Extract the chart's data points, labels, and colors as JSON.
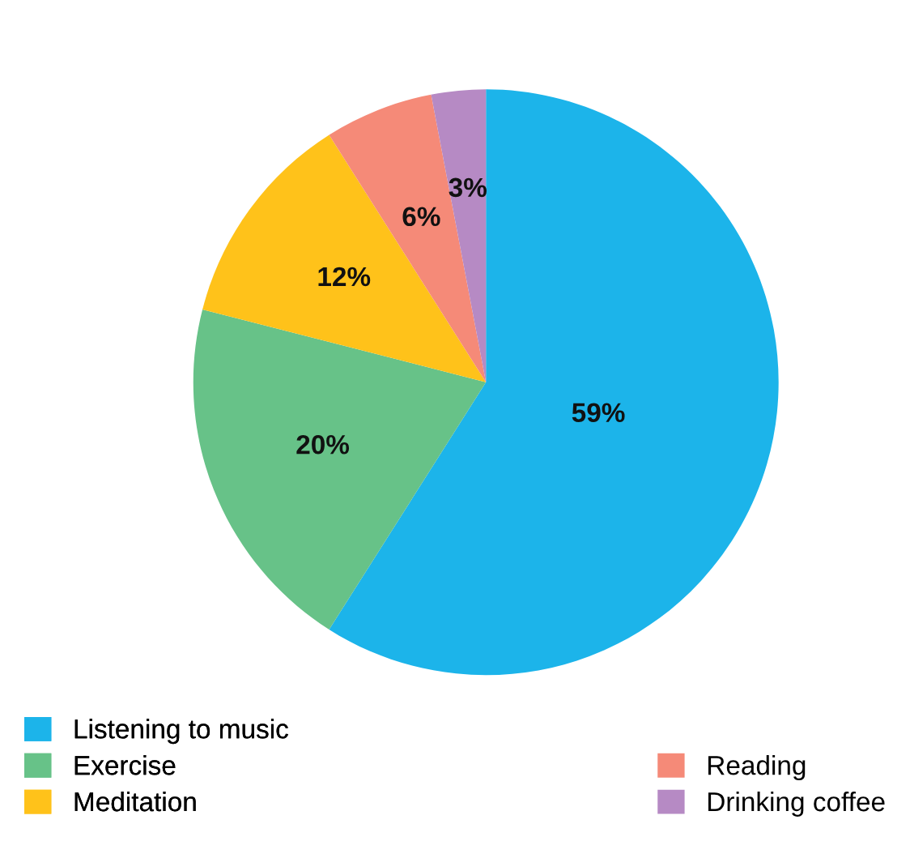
{
  "chart_data": {
    "type": "pie",
    "categories": [
      "Listening to music",
      "Exercise",
      "Meditation",
      "Reading",
      "Drinking coffee"
    ],
    "values": [
      59,
      20,
      12,
      6,
      3
    ],
    "colors": [
      "#1cb4ea",
      "#67c288",
      "#ffc21a",
      "#f58a78",
      "#b68ac4"
    ],
    "value_labels": [
      "59%",
      "20%",
      "12%",
      "6%",
      "3%"
    ],
    "legend": "bottom"
  }
}
